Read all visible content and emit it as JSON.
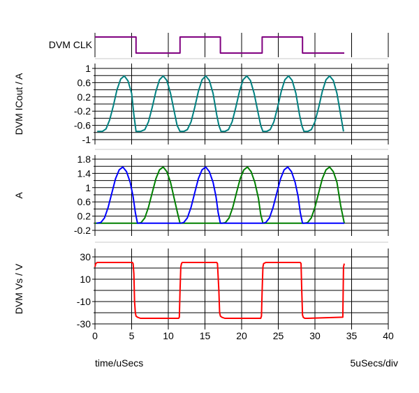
{
  "footer": {
    "left": "time/uSecs",
    "right": "5uSecs/div"
  },
  "colors": {
    "grid": "#000000",
    "separator": "#c8c8c8",
    "clk": "#800080",
    "icout": "#008080",
    "a_blue": "#0000ff",
    "a_green": "#008000",
    "vs": "#ff0000"
  },
  "chart_data": [
    {
      "type": "line",
      "ylabel": "DVM CLK",
      "digital": true,
      "x_ticks": [
        0,
        5,
        10,
        15,
        20,
        25,
        30,
        35,
        40
      ],
      "series": [
        {
          "color_key": "clk",
          "x": [
            0,
            5.6,
            5.6,
            11.6,
            11.6,
            17.1,
            17.1,
            22.8,
            22.8,
            28.3,
            28.3,
            34
          ],
          "y": [
            1,
            1,
            0,
            0,
            1,
            1,
            0,
            0,
            1,
            1,
            0,
            0
          ]
        }
      ]
    },
    {
      "type": "line",
      "ylabel": "DVM ICout / A",
      "ylim": [
        -1,
        1
      ],
      "y_ticks": [
        1,
        0.6,
        0.2,
        -0.2,
        -0.6,
        -1
      ],
      "y_tick_labels": [
        "1",
        "0.6",
        "0.2",
        "-0.2",
        "-0.6",
        "-1"
      ],
      "x_ticks": [
        0,
        5,
        10,
        15,
        20,
        25,
        30,
        35,
        40
      ],
      "series": [
        {
          "color_key": "icout",
          "x": [
            0.3,
            1.0,
            1.5,
            2.0,
            2.5,
            3.0,
            3.5,
            4.0,
            4.5,
            5.0,
            5.3,
            5.6,
            6.2,
            6.8,
            7.3,
            7.8,
            8.3,
            8.8,
            9.3,
            9.8,
            10.3,
            10.8,
            11.2,
            11.6,
            12.1,
            12.6,
            13.1,
            13.6,
            14.1,
            14.6,
            15.1,
            15.6,
            16.1,
            16.6,
            16.9,
            17.2,
            17.7,
            18.2,
            18.7,
            19.2,
            19.7,
            20.2,
            20.7,
            21.2,
            21.7,
            22.2,
            22.6,
            22.9,
            23.4,
            23.9,
            24.4,
            24.9,
            25.4,
            25.9,
            26.4,
            26.9,
            27.4,
            27.9,
            28.2,
            28.5,
            29.0,
            29.5,
            30.0,
            30.5,
            31.0,
            31.5,
            32.0,
            32.5,
            33.0,
            33.5,
            33.9
          ],
          "y": [
            -0.77,
            -0.77,
            -0.7,
            -0.45,
            -0.05,
            0.4,
            0.7,
            0.79,
            0.65,
            0.3,
            -0.3,
            -0.77,
            -0.77,
            -0.72,
            -0.5,
            -0.1,
            0.35,
            0.68,
            0.79,
            0.66,
            0.3,
            -0.2,
            -0.6,
            -0.77,
            -0.77,
            -0.72,
            -0.5,
            -0.1,
            0.35,
            0.68,
            0.79,
            0.66,
            0.3,
            -0.3,
            -0.6,
            -0.77,
            -0.77,
            -0.72,
            -0.5,
            -0.1,
            0.35,
            0.68,
            0.79,
            0.66,
            0.3,
            -0.2,
            -0.6,
            -0.77,
            -0.77,
            -0.72,
            -0.5,
            -0.1,
            0.35,
            0.68,
            0.79,
            0.66,
            0.3,
            -0.3,
            -0.6,
            -0.77,
            -0.77,
            -0.72,
            -0.5,
            -0.1,
            0.35,
            0.68,
            0.79,
            0.66,
            0.3,
            -0.3,
            -0.77
          ]
        }
      ]
    },
    {
      "type": "line",
      "ylabel": "A",
      "ylim": [
        -0.2,
        1.8
      ],
      "y_ticks": [
        1.8,
        1.4,
        1,
        0.6,
        0.2,
        -0.2
      ],
      "y_tick_labels": [
        "1.8",
        "1.4",
        "1",
        "0.6",
        "0.2",
        "-0.2"
      ],
      "x_ticks": [
        0,
        5,
        10,
        15,
        20,
        25,
        30,
        35,
        40
      ],
      "series": [
        {
          "color_key": "a_green",
          "x": [
            0,
            5.8,
            6.3,
            6.8,
            7.3,
            7.8,
            8.3,
            8.8,
            9.3,
            9.8,
            10.3,
            10.8,
            11.3,
            11.6,
            17.3,
            17.8,
            18.3,
            18.8,
            19.3,
            19.8,
            20.3,
            20.8,
            21.3,
            21.8,
            22.3,
            22.6,
            22.9,
            28.5,
            29.0,
            29.5,
            30.0,
            30.5,
            31.0,
            31.5,
            32.0,
            32.5,
            33.0,
            33.5,
            34.0
          ],
          "y": [
            0,
            0,
            0.02,
            0.15,
            0.45,
            0.85,
            1.25,
            1.5,
            1.58,
            1.45,
            1.15,
            0.7,
            0.25,
            0,
            0,
            0.02,
            0.15,
            0.45,
            0.85,
            1.25,
            1.5,
            1.58,
            1.45,
            1.15,
            0.7,
            0.25,
            0,
            0,
            0.02,
            0.15,
            0.45,
            0.85,
            1.25,
            1.5,
            1.58,
            1.45,
            1.15,
            0.5,
            0
          ]
        },
        {
          "color_key": "a_blue",
          "x": [
            0.2,
            0.8,
            1.3,
            1.8,
            2.3,
            2.8,
            3.3,
            3.8,
            4.3,
            4.8,
            5.2,
            5.5,
            5.8,
            11.6,
            12.1,
            12.6,
            13.1,
            13.6,
            14.1,
            14.6,
            15.1,
            15.6,
            16.1,
            16.5,
            16.8,
            17.1,
            22.8,
            23.3,
            23.8,
            24.3,
            24.8,
            25.3,
            25.8,
            26.3,
            26.8,
            27.3,
            27.7,
            28.0,
            28.3,
            34.0
          ],
          "y": [
            0,
            0.02,
            0.15,
            0.45,
            0.85,
            1.25,
            1.5,
            1.58,
            1.45,
            1.15,
            0.75,
            0.3,
            0,
            0,
            0.02,
            0.15,
            0.45,
            0.85,
            1.25,
            1.5,
            1.58,
            1.45,
            1.15,
            0.75,
            0.3,
            0,
            0,
            0.02,
            0.15,
            0.45,
            0.85,
            1.25,
            1.5,
            1.58,
            1.45,
            1.15,
            0.75,
            0.3,
            0,
            0
          ]
        }
      ]
    },
    {
      "type": "line",
      "ylabel": "DVM Vs / V",
      "ylim": [
        -30,
        30
      ],
      "y_ticks": [
        30,
        10,
        -10,
        -30
      ],
      "y_tick_labels": [
        "30",
        "10",
        "-10",
        "-30"
      ],
      "x_ticks": [
        0,
        5,
        10,
        15,
        20,
        25,
        30,
        35,
        40
      ],
      "x_tick_labels": [
        "0",
        "5",
        "10",
        "15",
        "20",
        "25",
        "30",
        "35",
        "40"
      ],
      "series": [
        {
          "color_key": "vs",
          "x": [
            0,
            0.1,
            0.3,
            0.5,
            5.1,
            5.2,
            5.3,
            5.4,
            5.5,
            5.6,
            5.8,
            6.2,
            11.4,
            11.5,
            11.6,
            11.7,
            11.8,
            11.9,
            12.2,
            16.6,
            16.7,
            16.9,
            17.0,
            17.1,
            17.3,
            17.7,
            22.6,
            22.7,
            22.8,
            22.9,
            23.0,
            23.3,
            28.0,
            28.1,
            28.2,
            28.3,
            28.4,
            28.6,
            29.0,
            33.8,
            33.9,
            34.0
          ],
          "y": [
            21,
            24,
            25,
            25,
            25,
            24,
            15,
            -10,
            -20,
            -23,
            -24,
            -25,
            -25,
            -24,
            0,
            21,
            24,
            25,
            25,
            25,
            24,
            0,
            -20,
            -23,
            -24,
            -25,
            -25,
            -23,
            0,
            21,
            24,
            25,
            25,
            24,
            0,
            -22,
            -24,
            -25,
            -25,
            -24,
            21,
            24
          ]
        }
      ]
    }
  ]
}
